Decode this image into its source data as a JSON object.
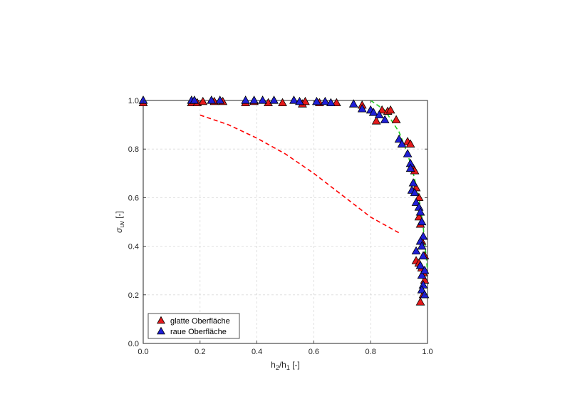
{
  "chart_data": {
    "type": "scatter",
    "xlabel": "h2/h1 [-]",
    "ylabel": "σuv [-]",
    "xlim": [
      0,
      1
    ],
    "ylim": [
      0,
      1
    ],
    "xticks": [
      "0.0",
      "0.2",
      "0.4",
      "0.6",
      "0.8",
      "1.0"
    ],
    "yticks": [
      "0.0",
      "0.2",
      "0.4",
      "0.6",
      "0.8",
      "1.0"
    ],
    "grid": true,
    "legend_position": "bottom-left",
    "colors": {
      "smooth": "#e41a1c",
      "rough": "#1f1fd6",
      "dashed_red": "#ff0000",
      "dashed_green": "#22cc22"
    },
    "series": [
      {
        "name": "glatte Oberfläche",
        "marker": "triangle",
        "points": [
          [
            0.0,
            0.99
          ],
          [
            0.17,
            0.99
          ],
          [
            0.19,
            0.99
          ],
          [
            0.21,
            0.995
          ],
          [
            0.25,
            0.995
          ],
          [
            0.28,
            0.995
          ],
          [
            0.36,
            0.99
          ],
          [
            0.39,
            0.995
          ],
          [
            0.44,
            0.99
          ],
          [
            0.49,
            0.99
          ],
          [
            0.56,
            0.985
          ],
          [
            0.57,
            0.995
          ],
          [
            0.62,
            0.99
          ],
          [
            0.68,
            0.99
          ],
          [
            0.77,
            0.98
          ],
          [
            0.82,
            0.915
          ],
          [
            0.84,
            0.96
          ],
          [
            0.86,
            0.955
          ],
          [
            0.87,
            0.96
          ],
          [
            0.89,
            0.92
          ],
          [
            0.93,
            0.83
          ],
          [
            0.94,
            0.82
          ],
          [
            0.95,
            0.72
          ],
          [
            0.955,
            0.71
          ],
          [
            0.96,
            0.64
          ],
          [
            0.97,
            0.6
          ],
          [
            0.97,
            0.52
          ],
          [
            0.975,
            0.49
          ],
          [
            0.96,
            0.34
          ],
          [
            0.97,
            0.33
          ],
          [
            0.98,
            0.31
          ],
          [
            0.985,
            0.29
          ],
          [
            0.99,
            0.26
          ],
          [
            0.985,
            0.2
          ],
          [
            0.975,
            0.17
          ],
          [
            0.99,
            0.36
          ],
          [
            0.98,
            0.42
          ]
        ]
      },
      {
        "name": "raue Oberfläche",
        "marker": "triangle",
        "points": [
          [
            0.0,
            1.0
          ],
          [
            0.17,
            1.0
          ],
          [
            0.18,
            1.0
          ],
          [
            0.24,
            1.0
          ],
          [
            0.27,
            1.0
          ],
          [
            0.36,
            1.0
          ],
          [
            0.39,
            1.0
          ],
          [
            0.42,
            1.0
          ],
          [
            0.46,
            1.0
          ],
          [
            0.53,
            1.0
          ],
          [
            0.55,
            0.995
          ],
          [
            0.61,
            0.995
          ],
          [
            0.64,
            0.995
          ],
          [
            0.66,
            0.99
          ],
          [
            0.74,
            0.985
          ],
          [
            0.77,
            0.965
          ],
          [
            0.8,
            0.96
          ],
          [
            0.81,
            0.95
          ],
          [
            0.83,
            0.94
          ],
          [
            0.85,
            0.92
          ],
          [
            0.9,
            0.84
          ],
          [
            0.91,
            0.82
          ],
          [
            0.93,
            0.78
          ],
          [
            0.94,
            0.74
          ],
          [
            0.94,
            0.72
          ],
          [
            0.95,
            0.66
          ],
          [
            0.945,
            0.63
          ],
          [
            0.955,
            0.62
          ],
          [
            0.96,
            0.58
          ],
          [
            0.97,
            0.56
          ],
          [
            0.975,
            0.54
          ],
          [
            0.98,
            0.5
          ],
          [
            0.985,
            0.44
          ],
          [
            0.975,
            0.42
          ],
          [
            0.98,
            0.4
          ],
          [
            0.96,
            0.38
          ],
          [
            0.985,
            0.36
          ],
          [
            0.975,
            0.32
          ],
          [
            0.98,
            0.28
          ],
          [
            0.99,
            0.3
          ],
          [
            0.985,
            0.24
          ],
          [
            0.98,
            0.22
          ],
          [
            0.99,
            0.2
          ]
        ]
      }
    ],
    "curves": [
      {
        "style": "dashed",
        "color": "red",
        "points": [
          [
            0.2,
            0.94
          ],
          [
            0.3,
            0.9
          ],
          [
            0.4,
            0.845
          ],
          [
            0.5,
            0.78
          ],
          [
            0.6,
            0.7
          ],
          [
            0.7,
            0.61
          ],
          [
            0.8,
            0.52
          ],
          [
            0.9,
            0.455
          ]
        ]
      },
      {
        "style": "dashed",
        "color": "green",
        "points": [
          [
            0.8,
            1.0
          ],
          [
            0.85,
            0.96
          ],
          [
            0.9,
            0.87
          ],
          [
            0.93,
            0.78
          ],
          [
            0.95,
            0.7
          ],
          [
            0.97,
            0.6
          ],
          [
            0.985,
            0.48
          ],
          [
            0.995,
            0.36
          ],
          [
            1.0,
            0.3
          ]
        ]
      }
    ]
  }
}
